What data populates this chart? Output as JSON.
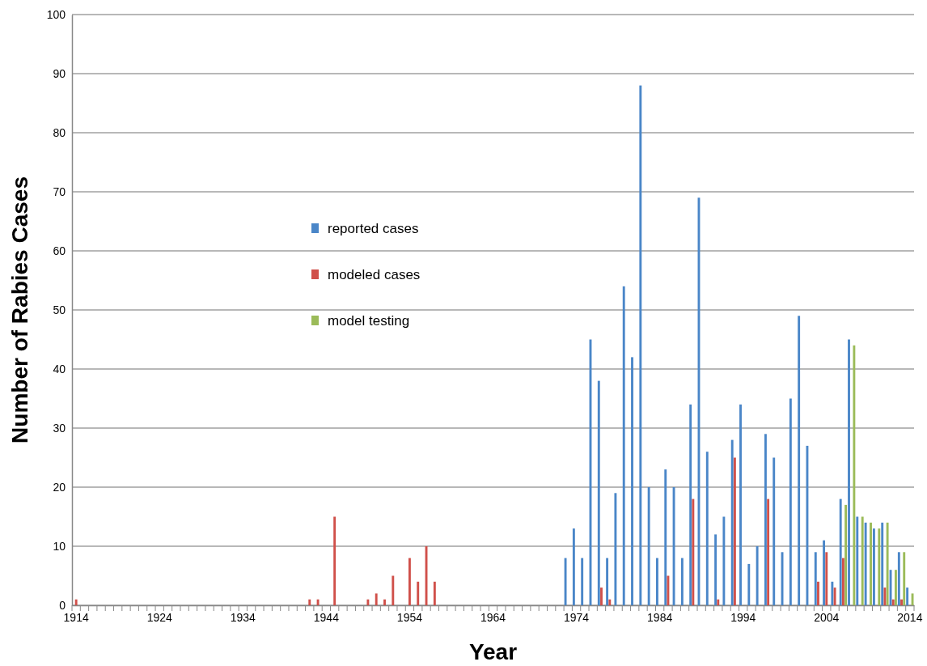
{
  "chart_data": {
    "type": "bar",
    "xlabel": "Year",
    "ylabel": "Number of Rabies Cases",
    "categories": [
      "1914",
      null,
      null,
      null,
      null,
      null,
      null,
      null,
      null,
      null,
      "1924",
      null,
      null,
      null,
      null,
      null,
      null,
      null,
      null,
      null,
      "1934",
      null,
      null,
      null,
      null,
      null,
      null,
      null,
      null,
      null,
      "1944",
      null,
      null,
      null,
      null,
      null,
      null,
      null,
      null,
      null,
      "1954",
      null,
      null,
      null,
      null,
      null,
      null,
      null,
      null,
      null,
      "1964",
      null,
      null,
      null,
      null,
      null,
      null,
      null,
      null,
      null,
      "1974",
      null,
      null,
      null,
      null,
      null,
      null,
      null,
      null,
      null,
      "1984",
      null,
      null,
      null,
      null,
      null,
      null,
      null,
      null,
      null,
      "1994",
      null,
      null,
      null,
      null,
      null,
      null,
      null,
      null,
      null,
      "2004",
      null,
      null,
      null,
      null,
      null,
      null,
      null,
      null,
      null,
      "2014"
    ],
    "series": [
      {
        "name": "reported cases",
        "color": "#4a86c8",
        "values": [
          null,
          null,
          null,
          null,
          null,
          null,
          null,
          null,
          null,
          null,
          null,
          null,
          null,
          null,
          null,
          null,
          null,
          null,
          null,
          null,
          null,
          null,
          null,
          null,
          null,
          null,
          null,
          null,
          null,
          null,
          null,
          null,
          null,
          null,
          null,
          null,
          null,
          null,
          null,
          null,
          null,
          null,
          null,
          null,
          null,
          null,
          null,
          null,
          null,
          null,
          null,
          null,
          null,
          null,
          null,
          null,
          null,
          null,
          null,
          8,
          13,
          8,
          45,
          38,
          8,
          19,
          54,
          42,
          88,
          20,
          8,
          23,
          20,
          8,
          34,
          69,
          26,
          12,
          15,
          28,
          34,
          7,
          10,
          29,
          25,
          9,
          35,
          49,
          27,
          9,
          11,
          4,
          18,
          45,
          15,
          14,
          13,
          14,
          6,
          9,
          3
        ]
      },
      {
        "name": "modeled cases",
        "color": "#d0504a",
        "values": [
          1,
          null,
          null,
          null,
          null,
          null,
          null,
          null,
          null,
          null,
          null,
          null,
          null,
          null,
          null,
          null,
          null,
          null,
          null,
          null,
          null,
          null,
          null,
          null,
          null,
          null,
          null,
          null,
          1,
          1,
          null,
          15,
          null,
          null,
          null,
          1,
          2,
          1,
          5,
          null,
          8,
          4,
          10,
          4,
          null,
          null,
          null,
          null,
          null,
          null,
          null,
          null,
          null,
          null,
          null,
          null,
          null,
          null,
          null,
          null,
          null,
          null,
          null,
          3,
          1,
          null,
          null,
          null,
          null,
          null,
          null,
          5,
          null,
          null,
          18,
          null,
          null,
          1,
          null,
          25,
          null,
          null,
          null,
          18,
          null,
          null,
          null,
          null,
          null,
          4,
          9,
          3,
          8,
          null,
          null,
          null,
          null,
          3,
          1,
          1,
          null
        ]
      },
      {
        "name": "model testing",
        "color": "#9bbb59",
        "values": [
          null,
          null,
          null,
          null,
          null,
          null,
          null,
          null,
          null,
          null,
          null,
          null,
          null,
          null,
          null,
          null,
          null,
          null,
          null,
          null,
          null,
          null,
          null,
          null,
          null,
          null,
          null,
          null,
          null,
          null,
          null,
          null,
          null,
          null,
          null,
          null,
          null,
          null,
          null,
          null,
          null,
          null,
          null,
          null,
          null,
          null,
          null,
          null,
          null,
          null,
          null,
          null,
          null,
          null,
          null,
          null,
          null,
          null,
          null,
          null,
          null,
          null,
          null,
          null,
          null,
          null,
          null,
          null,
          null,
          null,
          null,
          null,
          null,
          null,
          null,
          null,
          null,
          null,
          null,
          null,
          null,
          null,
          null,
          null,
          null,
          null,
          null,
          null,
          null,
          null,
          null,
          null,
          17,
          44,
          15,
          14,
          13,
          14,
          6,
          9,
          2
        ]
      }
    ],
    "ylim": [
      0,
      100
    ],
    "yticks": [
      0,
      10,
      20,
      30,
      40,
      50,
      60,
      70,
      80,
      90,
      100
    ],
    "grid": "y",
    "legend": "center"
  }
}
